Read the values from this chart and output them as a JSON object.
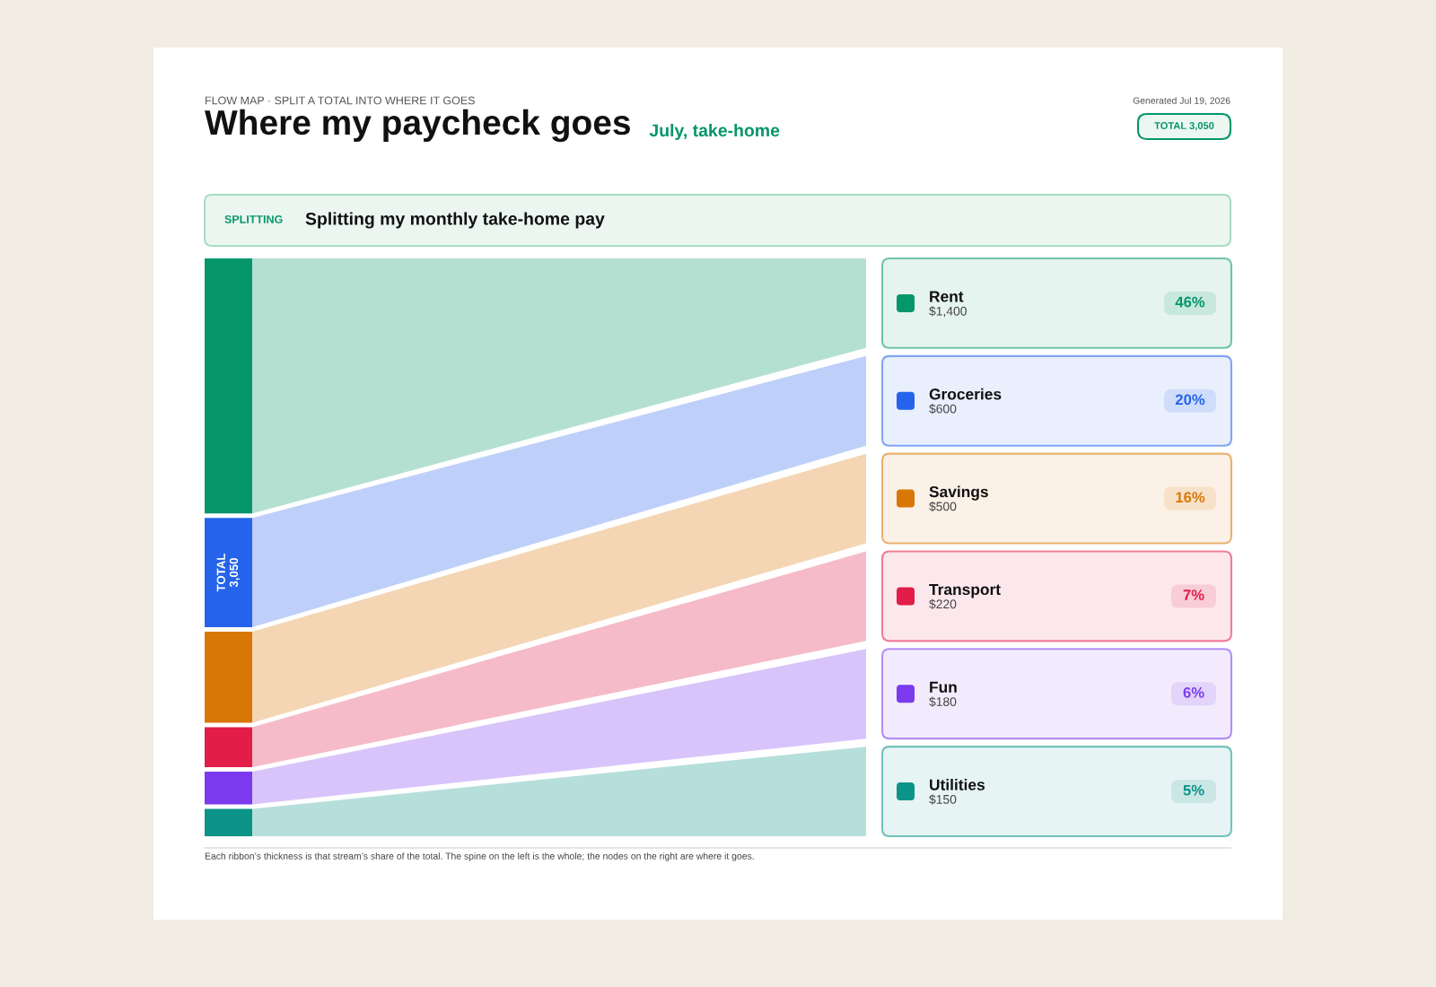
{
  "chart_data": {
    "type": "other",
    "title": "Where my paycheck goes",
    "subtitle": "July, take-home",
    "categories": [
      "Rent",
      "Groceries",
      "Savings",
      "Transport",
      "Fun",
      "Utilities"
    ],
    "values": [
      1400,
      600,
      500,
      220,
      180,
      150
    ],
    "value_labels": [
      "$1,400",
      "$600",
      "$500",
      "$220",
      "$180",
      "$150"
    ],
    "colors": [
      "#059669",
      "#2563eb",
      "#d97706",
      "#e11d48",
      "#7c3aed",
      "#0d9488"
    ],
    "annotations": [
      "FLOW MAP · SPLIT A TOTAL INTO WHERE IT GOES",
      "Generated Jul 19, 2026",
      "TOTAL 3,050",
      "TOTAL\n3,050",
      "SPLITTING",
      "Splitting my monthly take-home pay",
      "Each ribbon’s thickness is that stream’s share of the total. The spine on the left is the whole; the nodes on the right are where it goes.",
      "46%",
      "20%",
      "16%",
      "7%",
      "6%",
      "5%"
    ]
  }
}
